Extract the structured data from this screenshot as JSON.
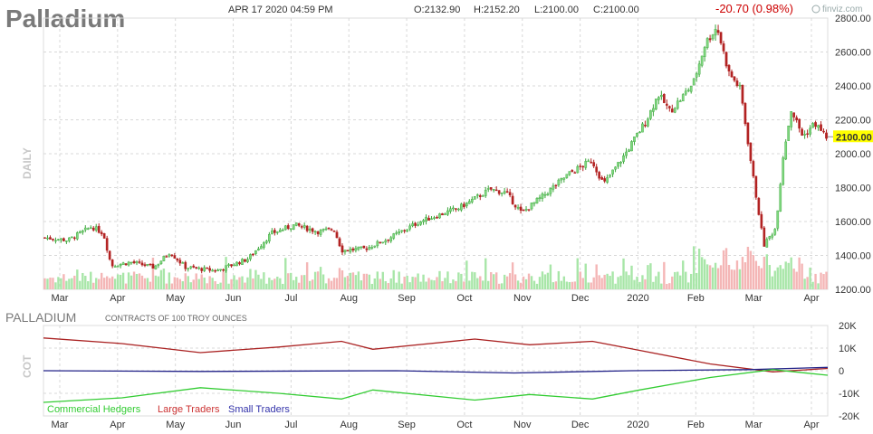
{
  "header": {
    "title": "Palladium",
    "datetime": "APR 17 2020 04:59 PM",
    "open": "O:2132.90",
    "high": "H:2152.20",
    "low": "L:2100.00",
    "close": "C:2100.00",
    "change": "-20.70 (0.98%)",
    "brand": "finviz.com",
    "side_label": "DAILY",
    "last_price": "2100.00",
    "colors": {
      "up": "#3aa53a",
      "down": "#b22222",
      "last_bg": "#ffff00"
    }
  },
  "cot": {
    "title": "PALLADIUM",
    "subtitle": "CONTRACTS OF 100 TROY OUNCES",
    "side_label": "COT",
    "yticks": [
      "20K",
      "10K",
      "0",
      "-10K",
      "-20K"
    ],
    "legend": [
      {
        "name": "Commercial Hedgers",
        "color": "#33cc33"
      },
      {
        "name": "Large Traders",
        "color": "#cc3333"
      },
      {
        "name": "Small Traders",
        "color": "#3333aa"
      }
    ]
  },
  "chart_data": [
    {
      "type": "candlestick",
      "name": "price",
      "yticks": [
        "2800.00",
        "2600.00",
        "2400.00",
        "2200.00",
        "2000.00",
        "1800.00",
        "1600.00",
        "1400.00",
        "1200.00"
      ],
      "ylim": [
        1200,
        2800
      ],
      "xlabels": [
        "Mar",
        "Apr",
        "May",
        "Jun",
        "Jul",
        "Aug",
        "Sep",
        "Oct",
        "Nov",
        "Dec",
        "2020",
        "Feb",
        "Mar",
        "Apr"
      ],
      "last": 2100,
      "close_path": [
        {
          "t": 0,
          "v": 1505
        },
        {
          "t": 0.03,
          "v": 1490
        },
        {
          "t": 0.06,
          "v": 1570
        },
        {
          "t": 0.075,
          "v": 1530
        },
        {
          "t": 0.085,
          "v": 1340
        },
        {
          "t": 0.11,
          "v": 1360
        },
        {
          "t": 0.14,
          "v": 1330
        },
        {
          "t": 0.16,
          "v": 1420
        },
        {
          "t": 0.18,
          "v": 1330
        },
        {
          "t": 0.2,
          "v": 1320
        },
        {
          "t": 0.22,
          "v": 1310
        },
        {
          "t": 0.26,
          "v": 1380
        },
        {
          "t": 0.29,
          "v": 1530
        },
        {
          "t": 0.32,
          "v": 1580
        },
        {
          "t": 0.35,
          "v": 1540
        },
        {
          "t": 0.37,
          "v": 1555
        },
        {
          "t": 0.38,
          "v": 1430
        },
        {
          "t": 0.41,
          "v": 1440
        },
        {
          "t": 0.44,
          "v": 1500
        },
        {
          "t": 0.48,
          "v": 1600
        },
        {
          "t": 0.53,
          "v": 1680
        },
        {
          "t": 0.57,
          "v": 1790
        },
        {
          "t": 0.59,
          "v": 1770
        },
        {
          "t": 0.61,
          "v": 1650
        },
        {
          "t": 0.64,
          "v": 1760
        },
        {
          "t": 0.67,
          "v": 1880
        },
        {
          "t": 0.7,
          "v": 1960
        },
        {
          "t": 0.715,
          "v": 1820
        },
        {
          "t": 0.74,
          "v": 1980
        },
        {
          "t": 0.77,
          "v": 2200
        },
        {
          "t": 0.785,
          "v": 2350
        },
        {
          "t": 0.8,
          "v": 2250
        },
        {
          "t": 0.815,
          "v": 2330
        },
        {
          "t": 0.83,
          "v": 2420
        },
        {
          "t": 0.845,
          "v": 2650
        },
        {
          "t": 0.86,
          "v": 2750
        },
        {
          "t": 0.875,
          "v": 2480
        },
        {
          "t": 0.89,
          "v": 2380
        },
        {
          "t": 0.905,
          "v": 1900
        },
        {
          "t": 0.92,
          "v": 1460
        },
        {
          "t": 0.935,
          "v": 1560
        },
        {
          "t": 0.945,
          "v": 2000
        },
        {
          "t": 0.955,
          "v": 2260
        },
        {
          "t": 0.97,
          "v": 2100
        },
        {
          "t": 0.985,
          "v": 2180
        },
        {
          "t": 1.0,
          "v": 2100
        }
      ]
    },
    {
      "type": "line",
      "name": "cot",
      "ylim": [
        -20000,
        20000
      ],
      "series": [
        {
          "name": "Large Traders",
          "color": "#aa2222",
          "points": [
            [
              0,
              14500
            ],
            [
              0.1,
              12000
            ],
            [
              0.2,
              8000
            ],
            [
              0.3,
              10500
            ],
            [
              0.38,
              13000
            ],
            [
              0.42,
              9500
            ],
            [
              0.55,
              14000
            ],
            [
              0.62,
              11500
            ],
            [
              0.7,
              13000
            ],
            [
              0.76,
              9000
            ],
            [
              0.85,
              3000
            ],
            [
              0.93,
              -500
            ],
            [
              1.0,
              1000
            ]
          ]
        },
        {
          "name": "Small Traders",
          "color": "#222288",
          "points": [
            [
              0,
              0
            ],
            [
              0.2,
              -300
            ],
            [
              0.45,
              0
            ],
            [
              0.6,
              -1000
            ],
            [
              0.75,
              0
            ],
            [
              0.9,
              500
            ],
            [
              1.0,
              1500
            ]
          ]
        },
        {
          "name": "Commercial Hedgers",
          "color": "#33cc33",
          "points": [
            [
              0,
              -14000
            ],
            [
              0.1,
              -12000
            ],
            [
              0.2,
              -7500
            ],
            [
              0.3,
              -10000
            ],
            [
              0.38,
              -12500
            ],
            [
              0.42,
              -8500
            ],
            [
              0.55,
              -13000
            ],
            [
              0.62,
              -10500
            ],
            [
              0.7,
              -12500
            ],
            [
              0.76,
              -8500
            ],
            [
              0.85,
              -3000
            ],
            [
              0.93,
              500
            ],
            [
              1.0,
              -2000
            ]
          ]
        }
      ]
    }
  ]
}
